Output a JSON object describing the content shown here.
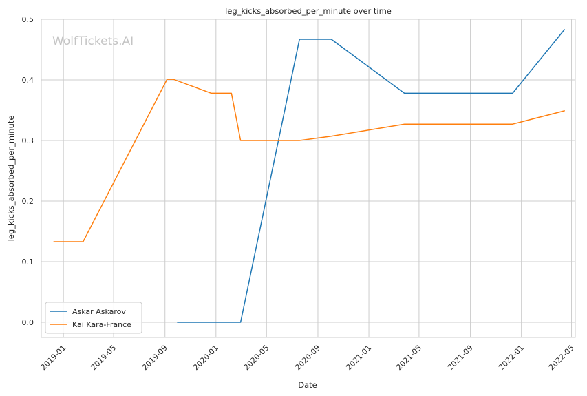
{
  "chart_data": {
    "type": "line",
    "title": "leg_kicks_absorbed_per_minute over time",
    "xlabel": "Date",
    "ylabel": "leg_kicks_absorbed_per_minute",
    "watermark": "WolfTickets.AI",
    "x_tick_labels": [
      "2019-01",
      "2019-05",
      "2019-09",
      "2020-01",
      "2020-05",
      "2020-09",
      "2021-01",
      "2021-05",
      "2021-09",
      "2022-01",
      "2022-05"
    ],
    "y_ticks": [
      0.0,
      0.1,
      0.2,
      0.3,
      0.4,
      0.5
    ],
    "y_tick_labels": [
      "0.0",
      "0.1",
      "0.2",
      "0.3",
      "0.4",
      "0.5"
    ],
    "xlim": [
      "2018-11-09",
      "2022-05-10"
    ],
    "ylim": [
      -0.025,
      0.5
    ],
    "grid": true,
    "legend_position": "lower-left",
    "series": [
      {
        "name": "Askar Askarov",
        "color": "#1f77b4",
        "x": [
          "2019-10-01",
          "2020-02-29",
          "2020-07-19",
          "2020-10-03",
          "2021-03-27",
          "2021-12-11",
          "2022-04-14"
        ],
        "y": [
          0.0,
          0.0,
          0.467,
          0.467,
          0.378,
          0.378,
          0.483
        ]
      },
      {
        "name": "Kai Kara-France",
        "color": "#ff7f0e",
        "x": [
          "2018-12-09",
          "2019-02-17",
          "2019-09-06",
          "2019-09-21",
          "2019-12-21",
          "2020-02-07",
          "2020-02-29",
          "2020-07-19",
          "2020-10-03",
          "2021-03-27",
          "2021-12-11",
          "2022-04-14"
        ],
        "y": [
          0.133,
          0.133,
          0.401,
          0.401,
          0.378,
          0.378,
          0.3,
          0.3,
          0.307,
          0.327,
          0.327,
          0.349
        ]
      }
    ]
  }
}
